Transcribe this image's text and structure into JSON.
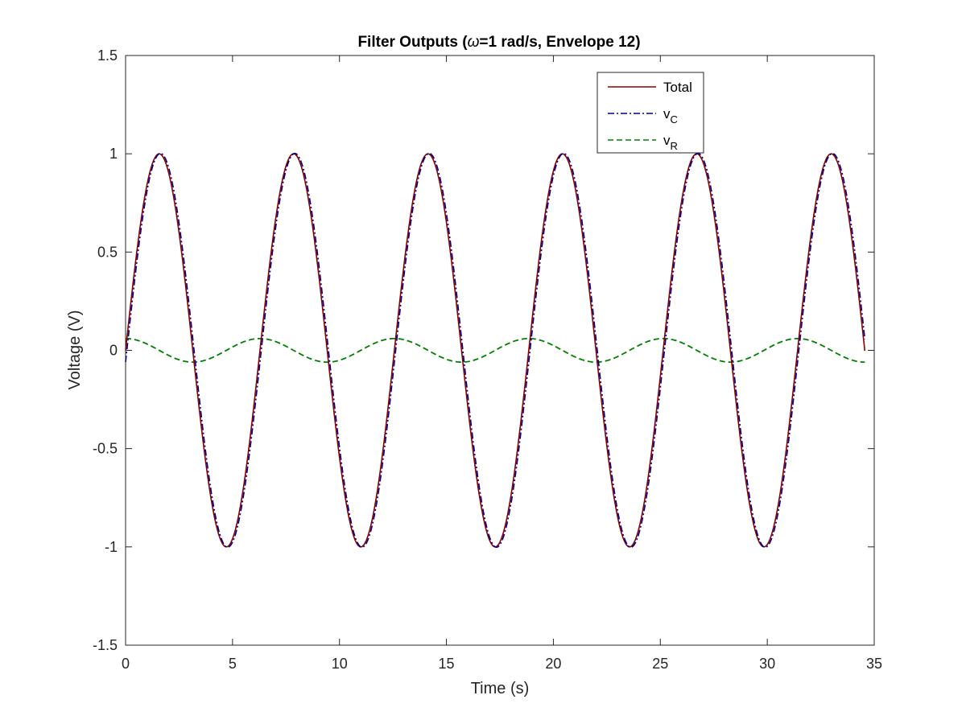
{
  "chart_data": {
    "type": "line",
    "title_parts": {
      "before": "Filter Outputs (",
      "symbol": "ω",
      "after": "=1 rad/s, Envelope 12)"
    },
    "xlabel": "Time (s)",
    "ylabel": "Voltage (V)",
    "xlim": [
      0,
      35
    ],
    "ylim": [
      -1.5,
      1.5
    ],
    "x_ticks": [
      0,
      5,
      10,
      15,
      20,
      25,
      30,
      35
    ],
    "x_tick_labels": [
      "0",
      "5",
      "10",
      "15",
      "20",
      "25",
      "30",
      "35"
    ],
    "y_ticks": [
      -1.5,
      -1,
      -0.5,
      0,
      0.5,
      1,
      1.5
    ],
    "y_tick_labels": [
      "-1.5",
      "-1",
      "-0.5",
      "0",
      "0.5",
      "1",
      "1.5"
    ],
    "grid": false,
    "legend_position": "top-right",
    "x_range": [
      0,
      34.56
    ],
    "samples": 800,
    "series": [
      {
        "name": "Total",
        "legend_base": "Total",
        "legend_sub": "",
        "color": "#8B0000",
        "style": "solid",
        "formula": "sin(t)",
        "amplitude": 1.0,
        "frequency_rad_s": 1.0
      },
      {
        "name": "v_C",
        "legend_base": "v",
        "legend_sub": "C",
        "color": "#00008B",
        "style": "dash-dot",
        "formula": "sin(t) - 0.06*cos(t)",
        "amplitude": 1.0,
        "frequency_rad_s": 1.0
      },
      {
        "name": "v_R",
        "legend_base": "v",
        "legend_sub": "R",
        "color": "#008000",
        "style": "dashed",
        "formula": "0.06*cos(t)",
        "amplitude": 0.06,
        "frequency_rad_s": 1.0
      }
    ]
  }
}
